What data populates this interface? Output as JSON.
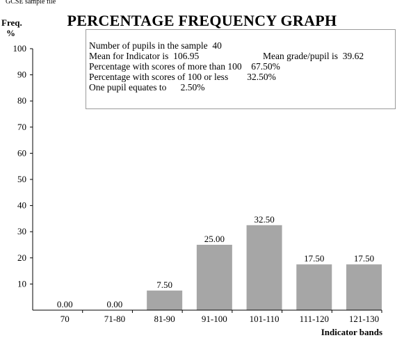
{
  "source_label": "GCSE sample file",
  "stats": {
    "pupils_label": "Number of pupils in the sample",
    "pupils_value": "40",
    "mean_indicator_label": "Mean for Indicator is",
    "mean_indicator_value": "106.95",
    "mean_grade_label": "Mean grade/pupil is",
    "mean_grade_value": "39.62",
    "above_label": "Percentage with scores of more than 100",
    "above_value": "67.50%",
    "below_label": "Percentage with scores of 100 or less",
    "below_value": "32.50%",
    "one_pupil_label": "One pupil equates to",
    "one_pupil_value": "2.50%"
  },
  "colors": {
    "bar": "#a6a6a6",
    "axis": "#000000",
    "box_border": "#9a9a9a"
  },
  "chart_data": {
    "type": "bar",
    "title": "PERCENTAGE FREQUENCY GRAPH",
    "ylabel_line1": "Freq.",
    "ylabel_line2": "%",
    "xlabel": "Indicator bands",
    "categories": [
      "70",
      "71-80",
      "81-90",
      "91-100",
      "101-110",
      "111-120",
      "121-130"
    ],
    "values": [
      0.0,
      0.0,
      7.5,
      25.0,
      32.5,
      17.5,
      17.5
    ],
    "value_labels": [
      "0.00",
      "0.00",
      "7.50",
      "25.00",
      "32.50",
      "17.50",
      "17.50"
    ],
    "ylim": [
      0,
      100
    ],
    "yticks": [
      10,
      20,
      30,
      40,
      50,
      60,
      70,
      80,
      90,
      100
    ],
    "grid": false,
    "legend": "none"
  }
}
